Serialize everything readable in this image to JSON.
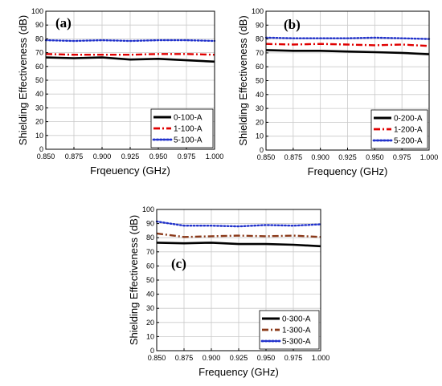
{
  "chart_data": [
    {
      "type": "line",
      "panel_label": "(a)",
      "xlabel": "Frqeuency (GHz)",
      "ylabel": "Shielding Effectiveness (dB)",
      "xlim": [
        0.85,
        1.0
      ],
      "ylim": [
        0,
        100
      ],
      "x_ticks": [
        "0.850",
        "0.875",
        "0.900",
        "0.925",
        "0.950",
        "0.975",
        "1.000"
      ],
      "y_ticks": [
        "0",
        "10",
        "20",
        "30",
        "40",
        "50",
        "60",
        "70",
        "80",
        "90",
        "100"
      ],
      "grid": true,
      "legend_position": "bottom-right",
      "x": [
        0.85,
        0.875,
        0.9,
        0.925,
        0.95,
        0.975,
        1.0
      ],
      "series": [
        {
          "name": "0-100-A",
          "color": "#000000",
          "style": "solid",
          "values": [
            66.5,
            66.0,
            66.5,
            65.0,
            65.5,
            64.5,
            63.5
          ]
        },
        {
          "name": "1-100-A",
          "color": "#e00000",
          "style": "dashdot",
          "values": [
            69.0,
            68.5,
            68.5,
            68.5,
            69.0,
            69.0,
            68.5
          ]
        },
        {
          "name": "5-100-A",
          "color": "#2233cc",
          "style": "dotted",
          "values": [
            79.0,
            78.5,
            79.0,
            78.5,
            79.0,
            79.0,
            78.5
          ]
        }
      ]
    },
    {
      "type": "line",
      "panel_label": "(b)",
      "xlabel": "Frequency (GHz)",
      "ylabel": "Shielding Effectiveness (dB)",
      "xlim": [
        0.85,
        1.0
      ],
      "ylim": [
        0,
        100
      ],
      "x_ticks": [
        "0.850",
        "0.875",
        "0.900",
        "0.925",
        "0.950",
        "0.975",
        "1.000"
      ],
      "y_ticks": [
        "0",
        "10",
        "20",
        "30",
        "40",
        "50",
        "60",
        "70",
        "80",
        "90",
        "100"
      ],
      "grid": true,
      "legend_position": "bottom-right",
      "x": [
        0.85,
        0.875,
        0.9,
        0.925,
        0.95,
        0.975,
        1.0
      ],
      "series": [
        {
          "name": "0-200-A",
          "color": "#000000",
          "style": "solid",
          "values": [
            72.0,
            71.5,
            71.5,
            71.0,
            70.5,
            70.0,
            69.0
          ]
        },
        {
          "name": "1-200-A",
          "color": "#e00000",
          "style": "dashdot",
          "values": [
            76.5,
            76.0,
            76.5,
            76.0,
            75.5,
            76.0,
            75.0
          ]
        },
        {
          "name": "5-200-A",
          "color": "#2233cc",
          "style": "dotted",
          "values": [
            81.0,
            80.5,
            80.5,
            80.5,
            81.0,
            80.5,
            80.0
          ]
        }
      ]
    },
    {
      "type": "line",
      "panel_label": "(c)",
      "xlabel": "Frequency (GHz)",
      "ylabel": "Shielding Effectiveness (dB)",
      "xlim": [
        0.85,
        1.0
      ],
      "ylim": [
        0,
        100
      ],
      "x_ticks": [
        "0.850",
        "0.875",
        "0.900",
        "0.925",
        "0.950",
        "0.975",
        "1.000"
      ],
      "y_ticks": [
        "0",
        "10",
        "20",
        "30",
        "40",
        "50",
        "60",
        "70",
        "80",
        "90",
        "100"
      ],
      "grid": true,
      "legend_position": "bottom-right",
      "x": [
        0.85,
        0.875,
        0.9,
        0.925,
        0.95,
        0.975,
        1.0
      ],
      "series": [
        {
          "name": "0-300-A",
          "color": "#000000",
          "style": "solid",
          "values": [
            76.5,
            76.0,
            76.5,
            75.5,
            75.5,
            75.0,
            74.0
          ]
        },
        {
          "name": "1-300-A",
          "color": "#8b3a1a",
          "style": "dashdot",
          "values": [
            83.0,
            80.5,
            81.0,
            81.5,
            81.0,
            81.5,
            80.5
          ]
        },
        {
          "name": "5-300-A",
          "color": "#2233cc",
          "style": "dotted",
          "values": [
            91.5,
            88.5,
            88.5,
            88.0,
            89.0,
            88.5,
            89.5
          ]
        }
      ]
    }
  ]
}
